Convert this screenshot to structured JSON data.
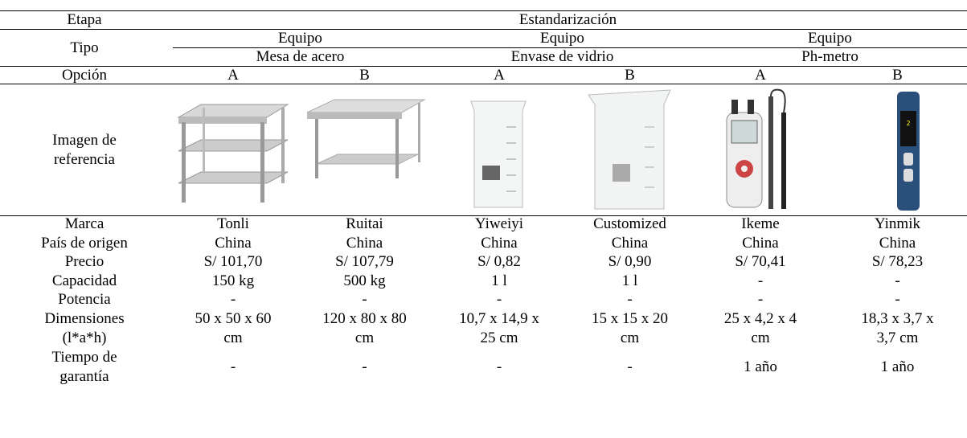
{
  "table": {
    "stage_label": "Etapa",
    "stage": "Estandarización",
    "type_label": "Tipo",
    "groups": [
      {
        "category": "Equipo",
        "name": "Mesa de acero"
      },
      {
        "category": "Equipo",
        "name": "Envase de vidrio"
      },
      {
        "category": "Equipo",
        "name": "Ph-metro"
      }
    ],
    "option_label": "Opción",
    "options": [
      "A",
      "B",
      "A",
      "B",
      "A",
      "B"
    ],
    "image_label": "Imagen de\nreferencia",
    "rows": [
      {
        "label": "Marca",
        "cells": [
          "Tonli",
          "Ruitai",
          "Yiweiyi",
          "Customized",
          "Ikeme",
          "Yinmik"
        ]
      },
      {
        "label": "País de origen",
        "cells": [
          "China",
          "China",
          "China",
          "China",
          "China",
          "China"
        ]
      },
      {
        "label": "Precio",
        "cells": [
          "S/ 101,70",
          "S/ 107,79",
          "S/ 0,82",
          "S/ 0,90",
          "S/ 70,41",
          "S/ 78,23"
        ]
      },
      {
        "label": "Capacidad",
        "cells": [
          "150 kg",
          "500 kg",
          "1 l",
          "1 l",
          "-",
          "-"
        ]
      },
      {
        "label": "Potencia",
        "cells": [
          "-",
          "-",
          "-",
          "-",
          "-",
          "-"
        ]
      },
      {
        "label": "Dimensiones\n(l*a*h)",
        "cells": [
          "50 x 50 x 60\ncm",
          "120 x 80 x 80\ncm",
          "10,7 x 14,9 x\n25 cm",
          "15 x 15 x 20\ncm",
          "25 x 4,2 x 4\ncm",
          "18,3 x 3,7 x\n3,7 cm"
        ]
      },
      {
        "label": "Tiempo de\ngarantía",
        "cells": [
          "-",
          "-",
          "-",
          "-",
          "1 año",
          "1 año"
        ]
      }
    ]
  }
}
